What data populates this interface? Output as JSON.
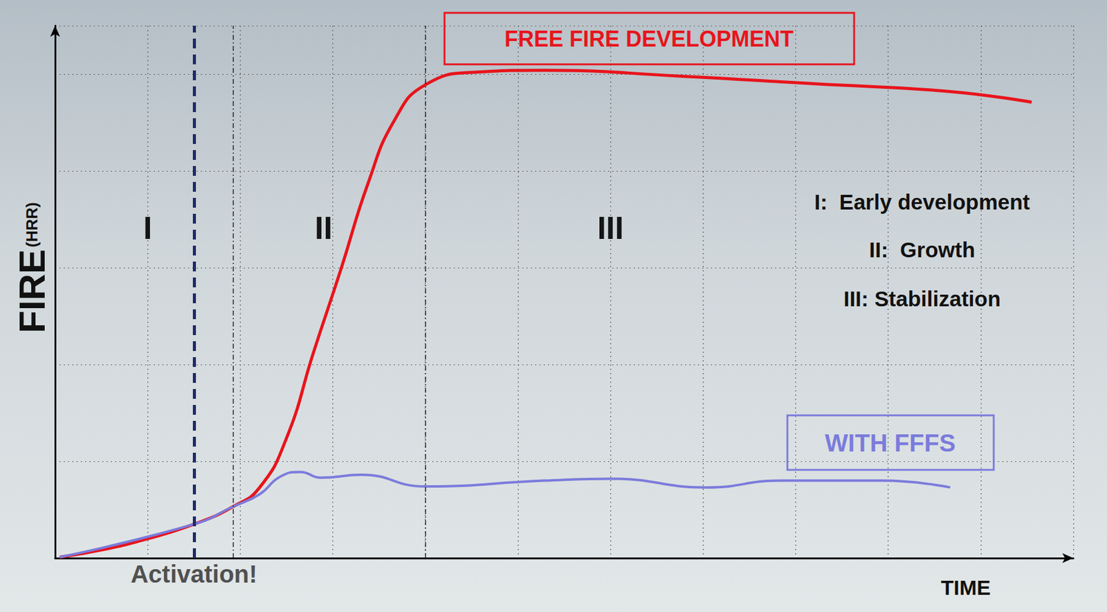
{
  "chart_data": {
    "type": "line",
    "xlabel": "TIME",
    "ylabel": "FIRE (HRR)",
    "xlim": [
      0,
      11
    ],
    "ylim": [
      0,
      5.5
    ],
    "xticks": [
      0,
      1,
      2,
      3,
      4,
      5,
      6,
      7,
      8,
      9,
      10,
      11
    ],
    "yticks": [
      0,
      1,
      2,
      3,
      4,
      5
    ],
    "grid": true,
    "tick_labels": false,
    "series": [
      {
        "name": "FREE FIRE DEVELOPMENT",
        "color": "#e8141c",
        "x": [
          0.05,
          0.53,
          1.0,
          1.5,
          1.92,
          2.21,
          2.5,
          2.79,
          3.09,
          3.38,
          3.67,
          4.0,
          4.55,
          5.28,
          6.74,
          8.21,
          9.67,
          10.55
        ],
        "values": [
          0.01,
          0.09,
          0.2,
          0.35,
          0.53,
          0.73,
          1.24,
          2.12,
          2.99,
          3.87,
          4.53,
          4.89,
          5.02,
          5.04,
          4.98,
          4.9,
          4.82,
          4.71
        ]
      },
      {
        "name": "WITH FFFS",
        "color": "#7b7bdc",
        "x": [
          0.05,
          1.5,
          1.92,
          2.21,
          2.43,
          2.65,
          2.87,
          3.31,
          4.0,
          5.28,
          6.01,
          7.04,
          7.84,
          8.94,
          9.67
        ],
        "values": [
          0.01,
          0.35,
          0.53,
          0.66,
          0.84,
          0.89,
          0.83,
          0.86,
          0.74,
          0.8,
          0.82,
          0.73,
          0.8,
          0.8,
          0.73
        ]
      }
    ],
    "activation": {
      "x": 1.5,
      "label": "Activation!"
    },
    "boundaries": [
      1.92,
      4.0
    ],
    "phases": [
      {
        "label": "I",
        "x": 1.0
      },
      {
        "label": "II",
        "x": 2.9
      },
      {
        "label": "III",
        "x": 6.0
      }
    ],
    "phase_key": [
      "I:  Early development",
      "II:  Growth",
      "III: Stabilization"
    ]
  }
}
